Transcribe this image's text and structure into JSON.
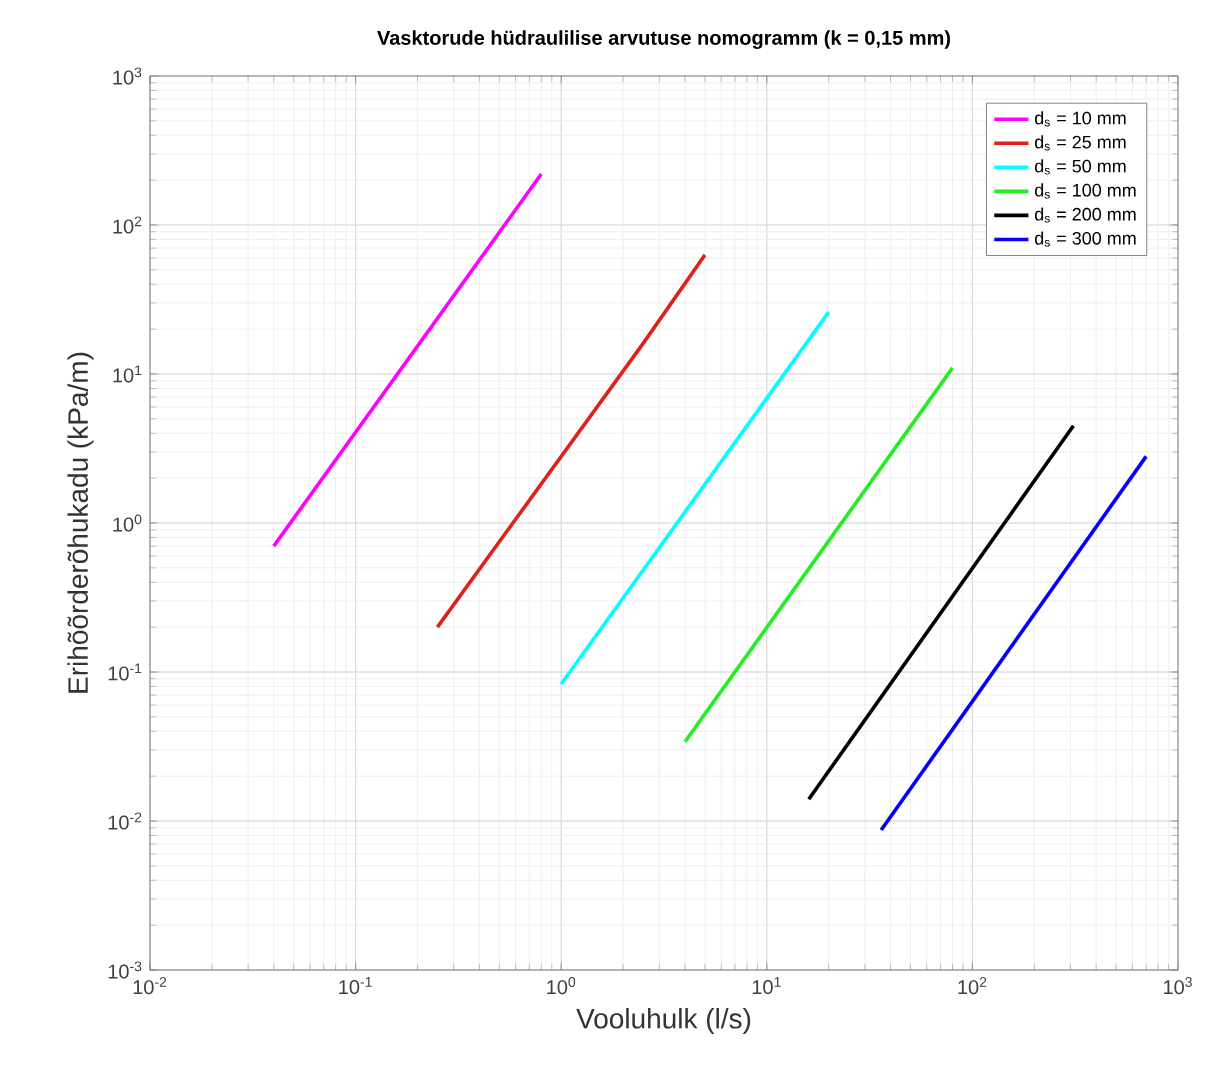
{
  "chart_data": {
    "type": "line",
    "title": "Vasktorude hüdraulilise arvutuse nomogramm (k = 0,15 mm)",
    "xlabel": "Vooluhulk (l/s)",
    "ylabel": "Erihõõrderõhukadu (kPa/m)",
    "log": "xy",
    "grid": true,
    "legend": "top right",
    "marker": "none",
    "line_style": "solid",
    "xlim": [
      0.01,
      1000
    ],
    "ylim": [
      0.001,
      1000
    ],
    "xticks": [
      {
        "value": 0.01,
        "label": "10$^{-2}$"
      },
      {
        "value": 0.1,
        "label": "10$^{-1}$"
      },
      {
        "value": 1,
        "label": "10$^{0}$"
      },
      {
        "value": 10,
        "label": "10$^{1}$"
      },
      {
        "value": 100,
        "label": "10$^{2}$"
      },
      {
        "value": 1000,
        "label": "10$^{3}$"
      }
    ],
    "yticks": [
      {
        "value": 0.001,
        "label": "10$^{-3}$"
      },
      {
        "value": 0.01,
        "label": "10$^{-2}$"
      },
      {
        "value": 0.1,
        "label": "10$^{-1}$"
      },
      {
        "value": 1,
        "label": "10$^{0}$"
      },
      {
        "value": 10,
        "label": "10$^{1}$"
      },
      {
        "value": 100,
        "label": "10$^{2}$"
      },
      {
        "value": 1000,
        "label": "10$^{3}$"
      }
    ],
    "series": [
      {
        "name": "d$_{s}$ = 10 mm",
        "color": "#ff00ff",
        "x": [
          0.04,
          0.8
        ],
        "values": [
          0.7,
          220
        ]
      },
      {
        "name": "d$_{s}$ = 25 mm",
        "color": "#e0201b",
        "x": [
          0.25,
          2.5,
          5
        ],
        "values": [
          0.2,
          16,
          63
        ]
      },
      {
        "name": "d$_{s}$ = 50 mm",
        "color": "#00ffff",
        "x": [
          1,
          20
        ],
        "values": [
          0.083,
          26
        ]
      },
      {
        "name": "d$_{s}$ = 100 mm",
        "color": "#22ee22",
        "x": [
          4,
          80
        ],
        "values": [
          0.034,
          11
        ]
      },
      {
        "name": "d$_{s}$ = 200 mm",
        "color": "#000000",
        "x": [
          16,
          310
        ],
        "values": [
          0.014,
          4.5
        ]
      },
      {
        "name": "d$_{s}$ = 300 mm",
        "color": "#0000ff",
        "x": [
          36,
          700
        ],
        "values": [
          0.0087,
          2.8
        ]
      }
    ]
  }
}
